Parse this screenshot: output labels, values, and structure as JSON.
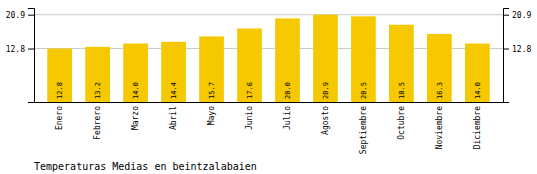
{
  "chart_data": {
    "type": "bar",
    "title": "Temperaturas Medias en beintzalabaien",
    "categories": [
      "Enero",
      "Febrero",
      "Marzo",
      "Abril",
      "Mayo",
      "Junio",
      "Julio",
      "Agosto",
      "Septiembre",
      "Octubre",
      "Noviembre",
      "Diciembre"
    ],
    "values": [
      12.8,
      13.2,
      14.0,
      14.4,
      15.7,
      17.6,
      20.0,
      20.9,
      20.5,
      18.5,
      16.3,
      14.0
    ],
    "value_labels": [
      "12.8",
      "13.2",
      "14.0",
      "14.4",
      "15.7",
      "17.6",
      "20.0",
      "20.9",
      "20.5",
      "18.5",
      "16.3",
      "14.0"
    ],
    "data_labels": true,
    "color": "#F5C800",
    "ylim": [
      0,
      22.5
    ],
    "yticks": [
      12.8,
      20.9
    ],
    "grid": true
  }
}
